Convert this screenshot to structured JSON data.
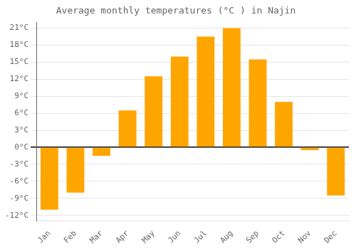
{
  "chart_data": {
    "type": "bar",
    "title": "Average monthly temperatures (°C ) in Najin",
    "categories": [
      "Jan",
      "Feb",
      "Mar",
      "Apr",
      "May",
      "Jun",
      "Jul",
      "Aug",
      "Sep",
      "Oct",
      "Nov",
      "Dec"
    ],
    "values": [
      -11,
      -8,
      -1.5,
      6.5,
      12.5,
      16,
      19.5,
      21,
      15.5,
      8,
      -0.5,
      -8.5
    ],
    "color": "#FFA500",
    "ylim": [
      -13,
      22
    ],
    "yticks": [
      {
        "value": -12,
        "label": "-12°C"
      },
      {
        "value": -9,
        "label": "-9°C"
      },
      {
        "value": -6,
        "label": "-6°C"
      },
      {
        "value": -3,
        "label": "-3°C"
      },
      {
        "value": 0,
        "label": "0°C"
      },
      {
        "value": 3,
        "label": "3°C"
      },
      {
        "value": 6,
        "label": "6°C"
      },
      {
        "value": 9,
        "label": "9°C"
      },
      {
        "value": 12,
        "label": "12°C"
      },
      {
        "value": 15,
        "label": "15°C"
      },
      {
        "value": 18,
        "label": "18°C"
      },
      {
        "value": 21,
        "label": "21°C"
      }
    ],
    "grid": true
  }
}
